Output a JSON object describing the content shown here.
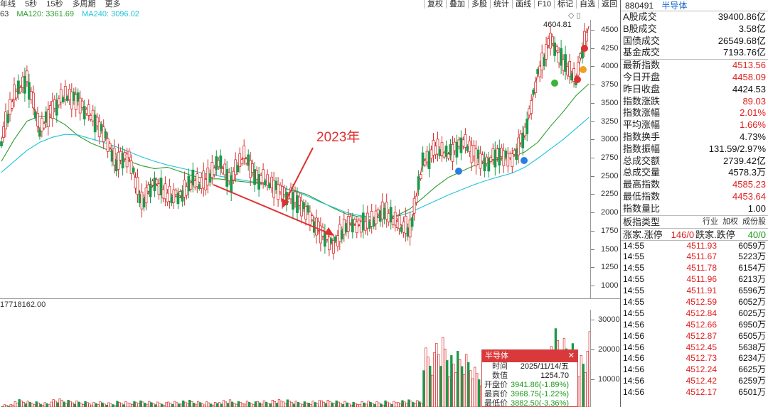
{
  "top_bar": {
    "items": [
      "年线",
      "5秒",
      "15秒",
      "多周期",
      "更多"
    ]
  },
  "toolbar": {
    "items": [
      "复权",
      "叠加",
      "多股",
      "统计",
      "画线",
      "F10",
      "标记",
      "自选",
      "返回"
    ]
  },
  "ma_bar": {
    "prefix": "63",
    "ma120": "MA120: 3361.69",
    "ma240": "MA240: 3096.02",
    "colors": {
      "ma120": "#2e9b2e",
      "ma240": "#1fc3d8"
    }
  },
  "annotation": {
    "label": "2023年",
    "high_label": "4604.81"
  },
  "y_axis": {
    "ticks": [
      "4500",
      "4250",
      "4000",
      "3750",
      "3500",
      "3250",
      "3000",
      "2750",
      "2500",
      "2250",
      "2000",
      "1750",
      "1500",
      "1250",
      "1000"
    ]
  },
  "volume": {
    "label": "17718162.00",
    "ticks": [
      "30000",
      "20000",
      "10000"
    ]
  },
  "tooltip": {
    "title": "半导体",
    "close": "✕",
    "rows": [
      {
        "k": "时间",
        "v": "2025/11/14/五",
        "color": "#111"
      },
      {
        "k": "数值",
        "v": "1254.70",
        "color": "#111"
      },
      {
        "k": "开盘价",
        "v": "3941.86(-1.89%)",
        "color": "#1a9a1a"
      },
      {
        "k": "最高价",
        "v": "3968.75(-1.22%)",
        "color": "#1a9a1a"
      },
      {
        "k": "最低价",
        "v": "3882.50(-3.36%)",
        "color": "#1a9a1a"
      }
    ]
  },
  "panel": {
    "code": "880491",
    "name": "半导体",
    "stats": [
      {
        "k": "A股成交",
        "v": "39400.86亿",
        "c": "dark"
      },
      {
        "k": "B股成交",
        "v": "3.58亿",
        "c": "dark"
      },
      {
        "k": "国债成交",
        "v": "26549.68亿",
        "c": "dark"
      },
      {
        "k": "基金成交",
        "v": "7193.76亿",
        "c": "dark"
      }
    ],
    "quote": [
      {
        "k": "最新指数",
        "v": "4513.56",
        "c": "red"
      },
      {
        "k": "今日开盘",
        "v": "4458.09",
        "c": "red"
      },
      {
        "k": "昨日收盘",
        "v": "4424.53",
        "c": "dark"
      },
      {
        "k": "指数涨跌",
        "v": "89.03",
        "c": "red"
      },
      {
        "k": "指数涨幅",
        "v": "2.01%",
        "c": "red"
      },
      {
        "k": "平均涨幅",
        "v": "1.66%",
        "c": "red"
      },
      {
        "k": "指数换手",
        "v": "4.73%",
        "c": "dark"
      },
      {
        "k": "指数振幅",
        "v": "131.59/2.97%",
        "c": "dark"
      },
      {
        "k": "总成交额",
        "v": "2739.42亿",
        "c": "dark"
      },
      {
        "k": "总成交量",
        "v": "4578.3万",
        "c": "dark"
      },
      {
        "k": "最高指数",
        "v": "4585.23",
        "c": "red"
      },
      {
        "k": "最低指数",
        "v": "4453.64",
        "c": "red"
      },
      {
        "k": "指数量比",
        "v": "1.00",
        "c": "dark"
      }
    ],
    "type_label": "板指类型",
    "type_tabs": [
      "行业",
      "加权",
      "成份股"
    ],
    "updown": {
      "up_label": "涨家.涨停",
      "up_value": "146/0",
      "down_label": "跌家.跌停",
      "down_value": "40/0"
    },
    "ticks": [
      {
        "t": "14:55",
        "p": "4511.93",
        "v": "6059万"
      },
      {
        "t": "14:55",
        "p": "4511.67",
        "v": "5223万"
      },
      {
        "t": "14:55",
        "p": "4511.78",
        "v": "6154万"
      },
      {
        "t": "14:55",
        "p": "4511.96",
        "v": "6213万"
      },
      {
        "t": "14:55",
        "p": "4511.91",
        "v": "6596万"
      },
      {
        "t": "14:55",
        "p": "4512.59",
        "v": "6052万"
      },
      {
        "t": "14:55",
        "p": "4512.84",
        "v": "6025万"
      },
      {
        "t": "14:56",
        "p": "4512.66",
        "v": "6950万"
      },
      {
        "t": "14:56",
        "p": "4512.87",
        "v": "6505万"
      },
      {
        "t": "14:56",
        "p": "4512.45",
        "v": "5638万"
      },
      {
        "t": "14:56",
        "p": "4512.73",
        "v": "6234万"
      },
      {
        "t": "14:56",
        "p": "4512.24",
        "v": "6625万"
      },
      {
        "t": "14:56",
        "p": "4512.42",
        "v": "6259万"
      },
      {
        "t": "14:56",
        "p": "4512.17",
        "v": "6501万"
      }
    ]
  },
  "chart_data": {
    "type": "line",
    "series": [
      {
        "name": "MA120",
        "color": "#2e9b2e",
        "values": [
          2700,
          3000,
          3250,
          3320,
          3300,
          3200,
          3050,
          2950,
          2880,
          2800,
          2700,
          2640,
          2600,
          2620,
          2560,
          2500,
          2460,
          2460,
          2440,
          2420,
          2400,
          2380,
          2330,
          2300,
          2240,
          2150,
          2060,
          1980,
          1940,
          1940,
          1920,
          1960,
          2050,
          2200,
          2350,
          2480,
          2560,
          2640,
          2700,
          2730,
          2760,
          2830,
          2960,
          3180,
          3380,
          3600,
          3760
        ]
      },
      {
        "name": "MA240",
        "color": "#1fc3d8",
        "values": [
          2550,
          2700,
          2850,
          2960,
          3030,
          3070,
          3060,
          3010,
          2960,
          2900,
          2830,
          2760,
          2700,
          2650,
          2610,
          2570,
          2530,
          2500,
          2470,
          2440,
          2410,
          2380,
          2340,
          2290,
          2220,
          2140,
          2070,
          2000,
          1960,
          1940,
          1930,
          1950,
          2000,
          2080,
          2160,
          2240,
          2310,
          2380,
          2440,
          2490,
          2540,
          2620,
          2740,
          2870,
          3000,
          3150,
          3300
        ]
      },
      {
        "name": "K",
        "color": "#c33",
        "values": [
          3000,
          3600,
          3850,
          3100,
          3450,
          3580,
          3550,
          3300,
          3100,
          2700,
          2750,
          2150,
          2400,
          2250,
          2200,
          2450,
          2380,
          2700,
          2450,
          2780,
          2500,
          2380,
          2300,
          2150,
          2020,
          1700,
          1560,
          1850,
          1820,
          1900,
          2000,
          1880,
          1720,
          2700,
          2850,
          2800,
          2980,
          2800,
          2700,
          2780,
          2760,
          3050,
          3900,
          4350,
          4050,
          3850,
          4550
        ]
      }
    ],
    "ylim": [
      1000,
      4604.81
    ],
    "volume": [
      1500,
      3000,
      2500,
      2200,
      3200,
      2800,
      2600,
      2300,
      2000,
      2500,
      2600,
      2400,
      2200,
      2600,
      2800,
      2400,
      2300,
      2900,
      2400,
      2500,
      2800,
      3000,
      2900,
      2500,
      2700,
      2800,
      2600,
      2300,
      2500,
      2300,
      2600,
      2900,
      2700,
      19000,
      24000,
      18000,
      17000,
      13000,
      12000,
      10000,
      9000,
      11000,
      14000,
      25000,
      22000,
      18000,
      26000
    ]
  }
}
